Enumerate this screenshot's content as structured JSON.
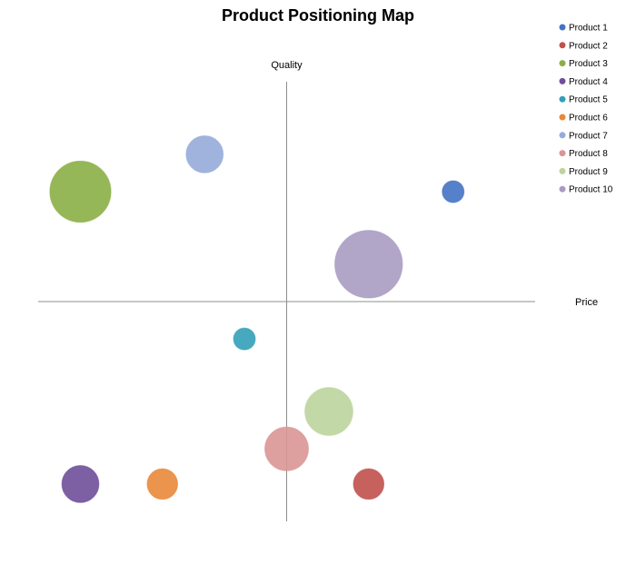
{
  "chart_data": {
    "type": "bubble",
    "title": "Product Positioning Map",
    "xlabel": "Price",
    "ylabel": "Quality",
    "xlim": [
      -10,
      10
    ],
    "ylim": [
      -10,
      10
    ],
    "grid": false,
    "legend_position": "top-right",
    "series": [
      {
        "name": "Product 1",
        "x": 6.7,
        "y": 5.0,
        "size": 1.0,
        "color": "#4472C4"
      },
      {
        "name": "Product 2",
        "x": 3.3,
        "y": -8.3,
        "size": 1.4,
        "color": "#C0504D"
      },
      {
        "name": "Product 3",
        "x": -8.3,
        "y": 5.0,
        "size": 2.8,
        "color": "#8BAF45"
      },
      {
        "name": "Product 4",
        "x": -8.3,
        "y": -8.3,
        "size": 1.7,
        "color": "#6F4F9A"
      },
      {
        "name": "Product 5",
        "x": -1.7,
        "y": -1.7,
        "size": 1.0,
        "color": "#33A0B9"
      },
      {
        "name": "Product 6",
        "x": -5.0,
        "y": -8.3,
        "size": 1.4,
        "color": "#E8883A"
      },
      {
        "name": "Product 7",
        "x": -3.3,
        "y": 6.7,
        "size": 1.7,
        "color": "#95ABD9"
      },
      {
        "name": "Product 8",
        "x": 0.0,
        "y": -6.7,
        "size": 2.0,
        "color": "#D99695"
      },
      {
        "name": "Product 9",
        "x": 1.7,
        "y": -5.0,
        "size": 2.2,
        "color": "#BDD49D"
      },
      {
        "name": "Product 10",
        "x": 3.3,
        "y": 1.7,
        "size": 3.1,
        "color": "#A99BC2"
      }
    ]
  }
}
